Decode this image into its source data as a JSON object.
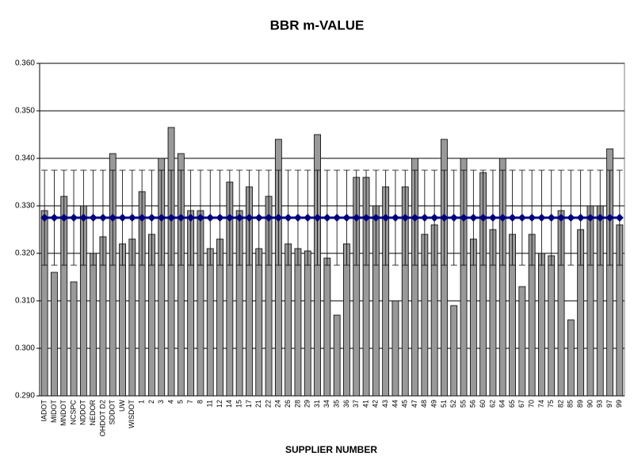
{
  "chart_data": {
    "type": "bar",
    "title": "BBR m-VALUE",
    "x_label": "SUPPLIER NUMBER",
    "categories": [
      "IADOT",
      "MIDOT",
      "MNDOT",
      "NCSPC",
      "NDDOT",
      "NEDOR",
      "OHDOT D2",
      "SDDOT",
      "UW",
      "WISDOT",
      "1",
      "2",
      "3",
      "4",
      "5",
      "7",
      "8",
      "11",
      "12",
      "14",
      "15",
      "17",
      "21",
      "22",
      "24",
      "26",
      "28",
      "29",
      "31",
      "34",
      "35",
      "36",
      "37",
      "41",
      "42",
      "43",
      "44",
      "45",
      "47",
      "48",
      "49",
      "51",
      "52",
      "55",
      "56",
      "60",
      "62",
      "64",
      "65",
      "67",
      "70",
      "74",
      "75",
      "82",
      "85",
      "89",
      "90",
      "93",
      "97",
      "99"
    ],
    "series": [
      {
        "type": "bar",
        "color": "#999999",
        "values": [
          0.329,
          0.316,
          0.332,
          0.314,
          0.33,
          0.32,
          0.3235,
          0.341,
          0.322,
          0.323,
          0.333,
          0.324,
          0.34,
          0.3465,
          0.341,
          0.329,
          0.329,
          0.321,
          0.323,
          0.335,
          0.329,
          0.334,
          0.321,
          0.332,
          0.344,
          0.322,
          0.321,
          0.3205,
          0.345,
          0.319,
          0.307,
          0.322,
          0.336,
          0.336,
          0.33,
          0.334,
          0.31,
          0.334,
          0.34,
          0.324,
          0.326,
          0.344,
          0.309,
          0.34,
          0.323,
          0.337,
          0.325,
          0.34,
          0.324,
          0.313,
          0.324,
          0.32,
          0.3195,
          0.329,
          0.306,
          0.325,
          0.33,
          0.33,
          0.342,
          0.326
        ]
      },
      {
        "type": "line",
        "color": "#000080",
        "values": [
          0.3275,
          0.3275,
          0.3275,
          0.3275,
          0.3275,
          0.3275,
          0.3275,
          0.3275,
          0.3275,
          0.3275,
          0.3275,
          0.3275,
          0.3275,
          0.3275,
          0.3275,
          0.3275,
          0.3275,
          0.3275,
          0.3275,
          0.3275,
          0.3275,
          0.3275,
          0.3275,
          0.3275,
          0.3275,
          0.3275,
          0.3275,
          0.3275,
          0.3275,
          0.3275,
          0.3275,
          0.3275,
          0.3275,
          0.3275,
          0.3275,
          0.3275,
          0.3275,
          0.3275,
          0.3275,
          0.3275,
          0.3275,
          0.3275,
          0.3275,
          0.3275,
          0.3275,
          0.3275,
          0.3275,
          0.3275,
          0.3275,
          0.3275,
          0.3275,
          0.3275,
          0.3275,
          0.3275,
          0.3275,
          0.3275,
          0.3275,
          0.3275,
          0.3275,
          0.3275
        ],
        "errors": [
          0.01,
          0.01,
          0.01,
          0.01,
          0.01,
          0.01,
          0.01,
          0.01,
          0.01,
          0.01,
          0.01,
          0.01,
          0.01,
          0.01,
          0.01,
          0.01,
          0.01,
          0.01,
          0.01,
          0.01,
          0.01,
          0.01,
          0.01,
          0.01,
          0.01,
          0.01,
          0.01,
          0.01,
          0.01,
          0.01,
          0.01,
          0.01,
          0.01,
          0.01,
          0.01,
          0.01,
          0.01,
          0.01,
          0.01,
          0.01,
          0.01,
          0.01,
          0.01,
          0.01,
          0.01,
          0.01,
          0.01,
          0.01,
          0.01,
          0.01,
          0.01,
          0.01,
          0.01,
          0.01,
          0.01,
          0.01,
          0.01,
          0.01,
          0.01,
          0.01
        ]
      }
    ],
    "ylim": [
      0.29,
      0.36
    ],
    "yticks": [
      {
        "value": 0.29,
        "label": "0.290"
      },
      {
        "value": 0.3,
        "label": "0.300"
      },
      {
        "value": 0.31,
        "label": "0.310"
      },
      {
        "value": 0.32,
        "label": "0.320"
      },
      {
        "value": 0.33,
        "label": "0.330"
      },
      {
        "value": 0.34,
        "label": "0.340"
      },
      {
        "value": 0.35,
        "label": "0.350"
      },
      {
        "value": 0.36,
        "label": "0.360"
      }
    ],
    "grid": true
  }
}
